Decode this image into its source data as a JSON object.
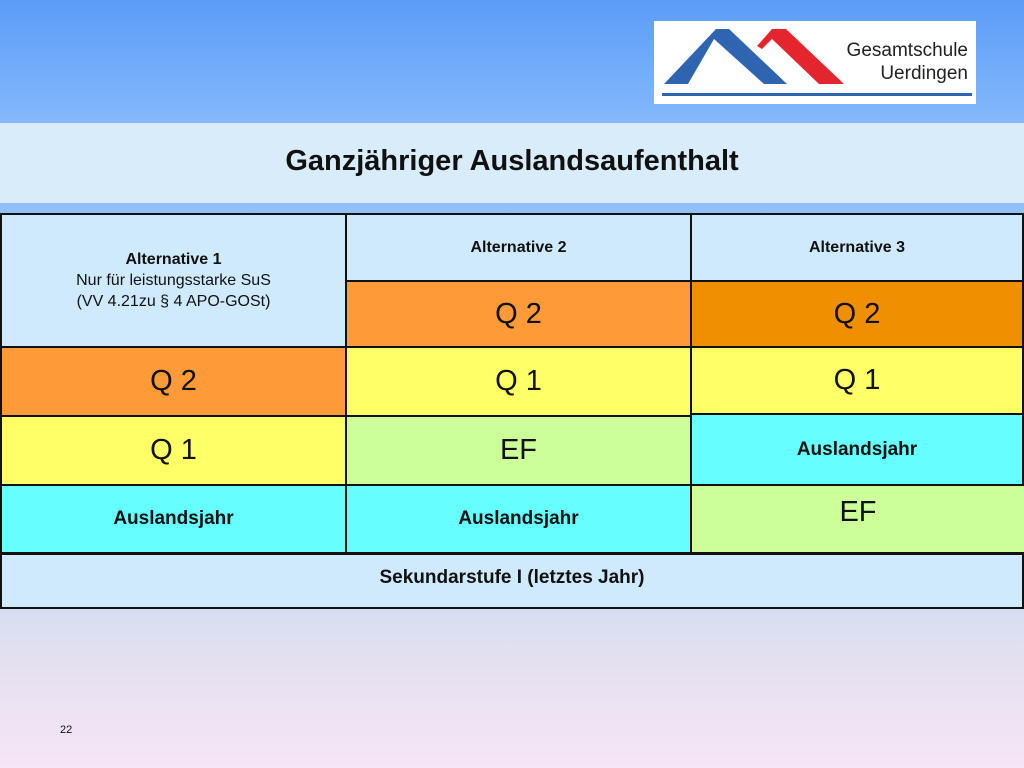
{
  "logo": {
    "line1": "Gesamtschule",
    "line2": "Uerdingen",
    "colors": {
      "blue": "#2f65b0",
      "red": "#e3262d"
    }
  },
  "title": "Ganzjähriger Auslandsaufenthalt",
  "columns": [
    {
      "header": "Alternative 1",
      "subheader1": "Nur für leistungsstarke SuS",
      "subheader2": "(VV 4.21zu § 4 APO-GOSt)",
      "cells": [
        "Q 2",
        "Q 1",
        "Auslandsjahr"
      ]
    },
    {
      "header": "Alternative 2",
      "cells": [
        "Q 2",
        "Q 1",
        "EF",
        "Auslandsjahr"
      ]
    },
    {
      "header": "Alternative 3",
      "cells": [
        "Q 2",
        "Q 1",
        "Auslandsjahr",
        "EF"
      ]
    }
  ],
  "footer": "Sekundarstufe I (letztes Jahr)",
  "page_number": "22",
  "colors": {
    "header": "#cfeafd",
    "q2": "#ff9a38",
    "q2_alt3": "#f09000",
    "q1": "#ffff66",
    "ef": "#ccff99",
    "auslandsjahr": "#66ffff"
  }
}
